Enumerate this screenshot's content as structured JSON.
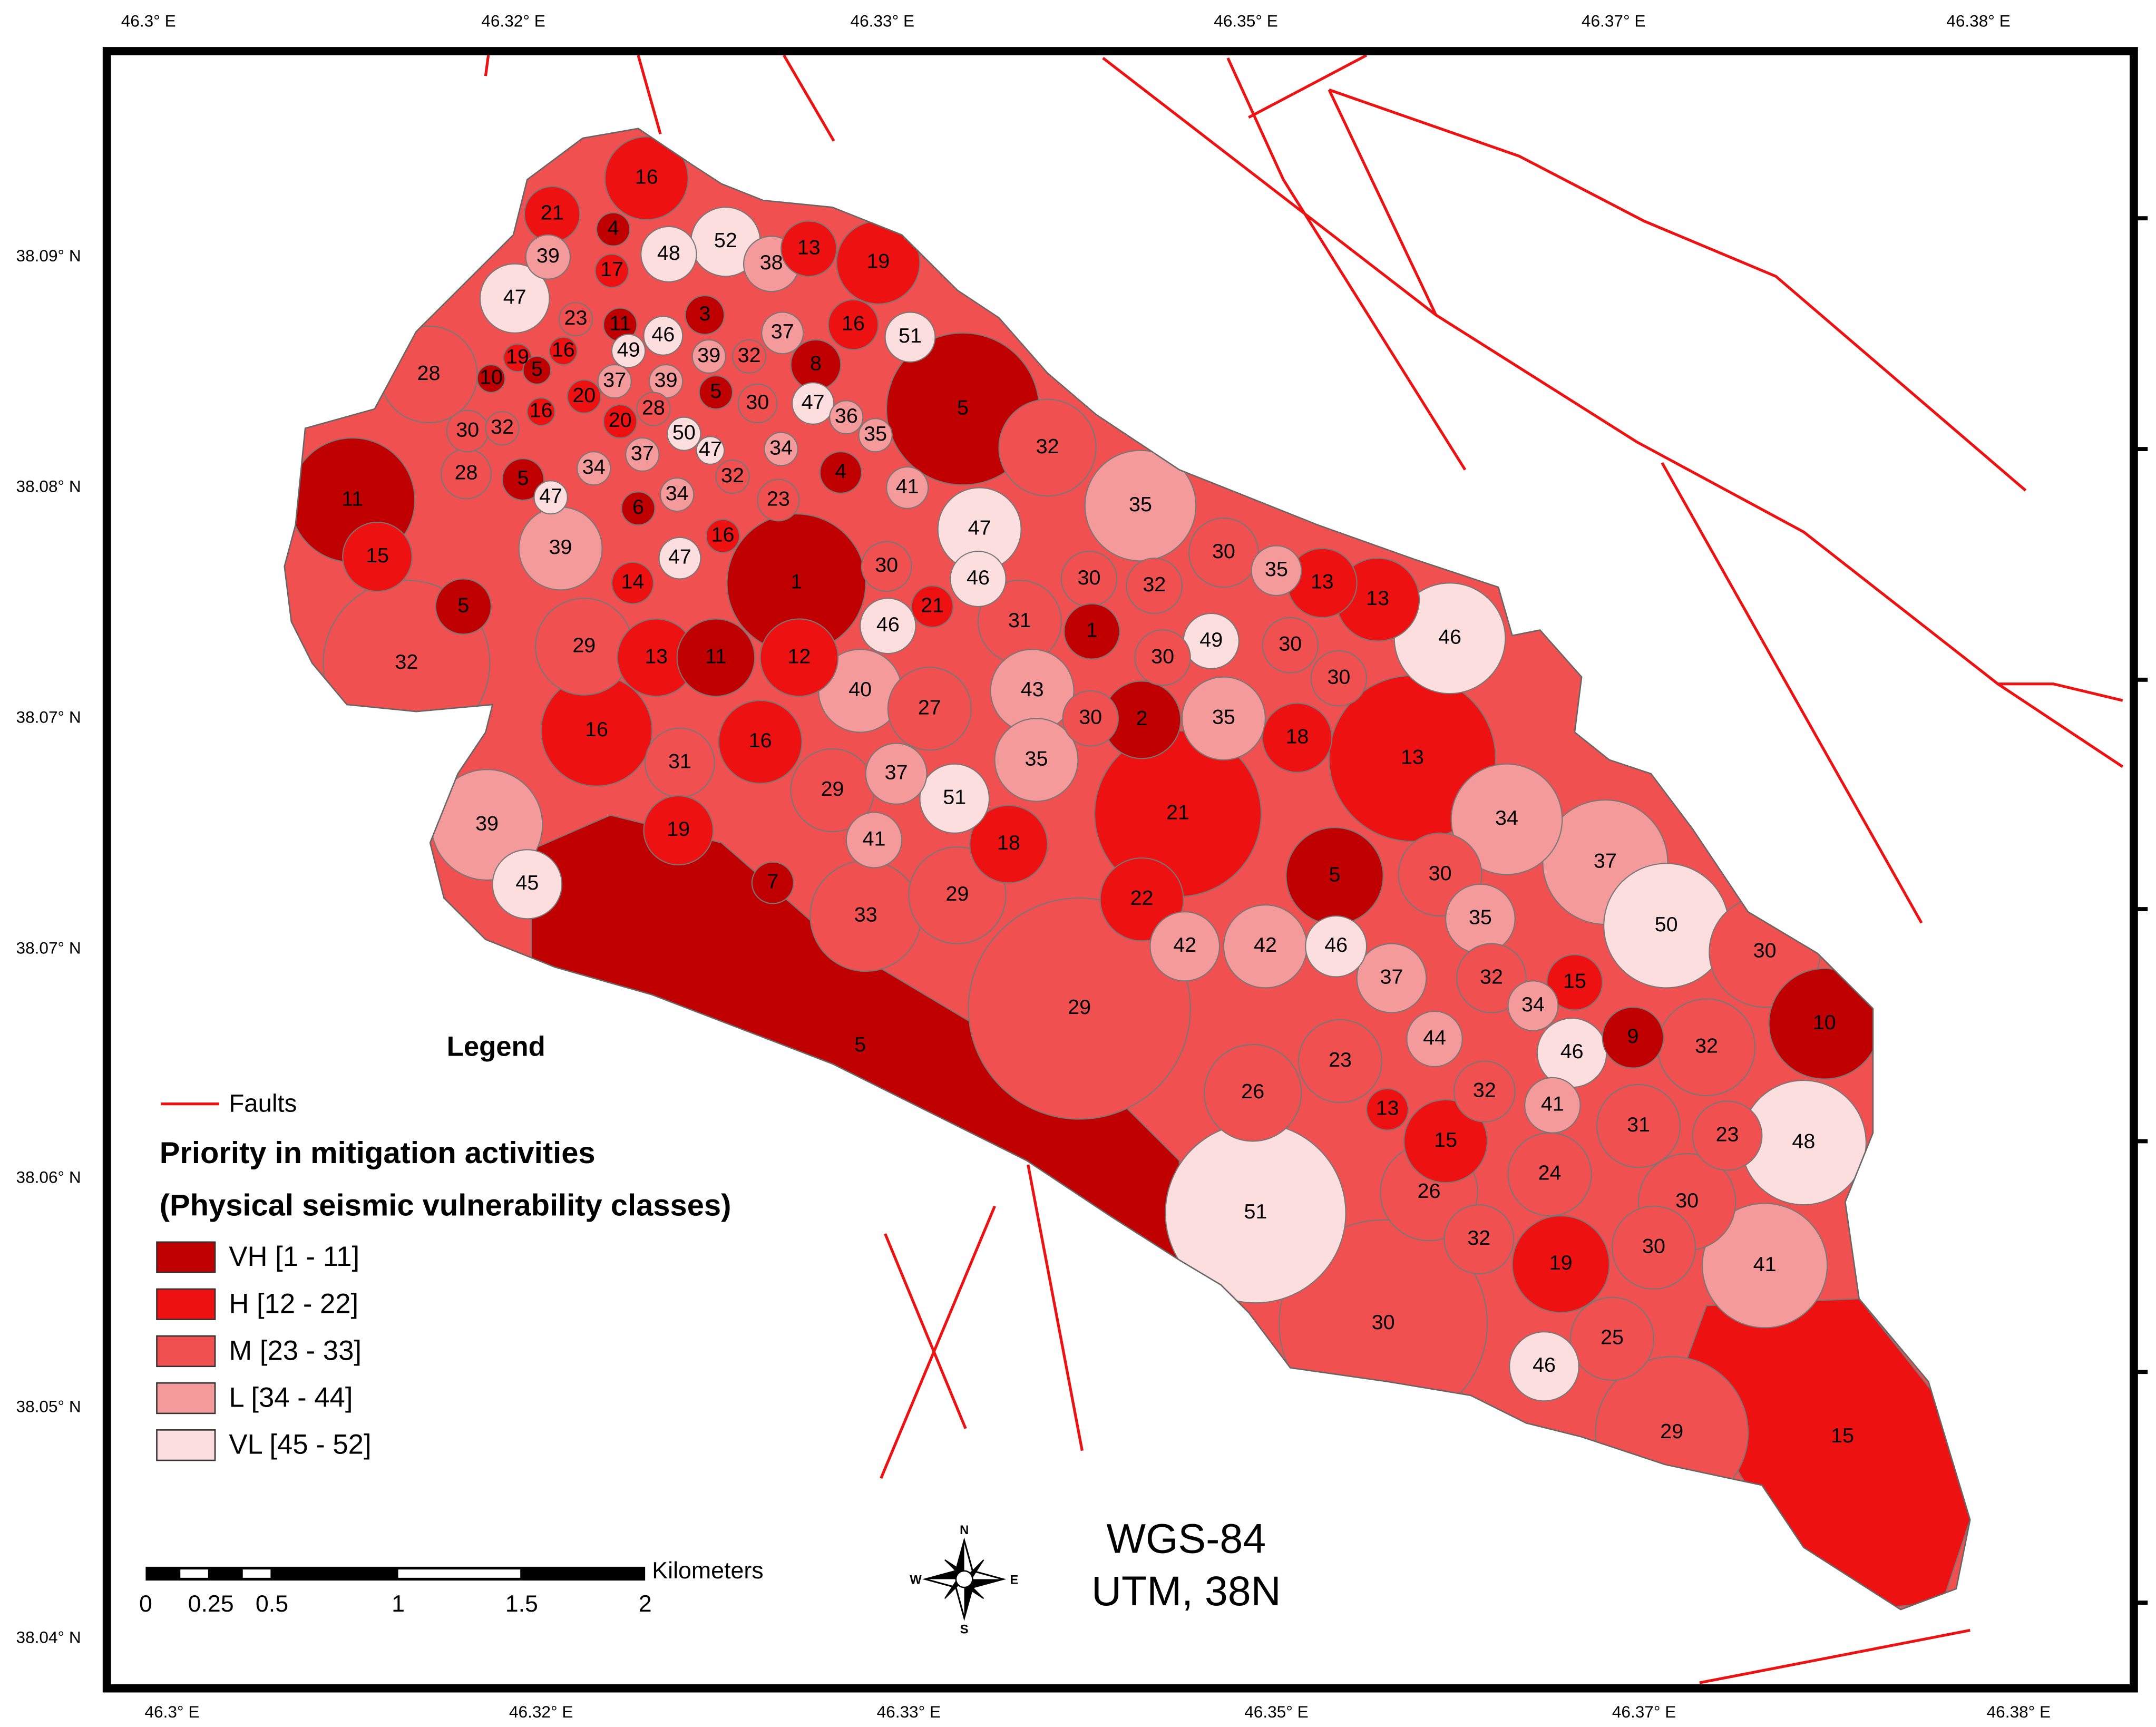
{
  "coordinates": {
    "top": [
      "46.3° E",
      "46.32° E",
      "46.33° E",
      "46.35° E",
      "46.37° E",
      "46.38° E"
    ],
    "bottom": [
      "46.3° E",
      "46.32° E",
      "46.33° E",
      "46.35° E",
      "46.37° E",
      "46.38° E"
    ],
    "left": [
      "38.09° N",
      "38.08° N",
      "38.07° N",
      "38.07° N",
      "38.06° N",
      "38.05° N",
      "38.04° N"
    ]
  },
  "legend": {
    "title": "Legend",
    "fault": "Faults",
    "heading": [
      "Priority in mitigation activities",
      "(Physical seismic vulnerability classes)"
    ],
    "classes": [
      {
        "label": "VH [1 - 11]",
        "color": "#c00000"
      },
      {
        "label": "H [12 - 22]",
        "color": "#ee1111"
      },
      {
        "label": "M [23 - 33]",
        "color": "#f05050"
      },
      {
        "label": "L [34 - 44]",
        "color": "#f59a9a"
      },
      {
        "label": "VL [45 - 52]",
        "color": "#fddede"
      }
    ]
  },
  "scale": {
    "labels": [
      "0",
      "0.25",
      "0.5",
      "1",
      "1.5",
      "2"
    ],
    "unit": "Kilometers"
  },
  "datum": [
    "WGS-84",
    "UTM, 38N"
  ],
  "compass": [
    "N",
    "E",
    "S",
    "W"
  ],
  "zones": {
    "labels": [
      16,
      21,
      4,
      39,
      17,
      48,
      52,
      38,
      13,
      19,
      47,
      23,
      11,
      3,
      46,
      37,
      16,
      51,
      28,
      19,
      16,
      49,
      39,
      32,
      10,
      5,
      37,
      39,
      8,
      5,
      20,
      28,
      5,
      30,
      47,
      36,
      16,
      30,
      32,
      20,
      50,
      47,
      35,
      34,
      32,
      11,
      28,
      5,
      47,
      34,
      37,
      32,
      4,
      41,
      34,
      6,
      23,
      35,
      47,
      15,
      39,
      16,
      47,
      1,
      30,
      46,
      30,
      32,
      30,
      35,
      13,
      13,
      14,
      21,
      5,
      32,
      29,
      13,
      11,
      12,
      46,
      31,
      1,
      49,
      30,
      30,
      46,
      30,
      16,
      40,
      27,
      43,
      30,
      2,
      35,
      18,
      13,
      31,
      16,
      29,
      37,
      51,
      35,
      21,
      39,
      45,
      19,
      41,
      18,
      29,
      34,
      37,
      50,
      5,
      30,
      22,
      7,
      33,
      42,
      42,
      46,
      35,
      30,
      37,
      32,
      15,
      34,
      29,
      10,
      9,
      44,
      23,
      46,
      32,
      5,
      26,
      13,
      32,
      41,
      15,
      31,
      23,
      48,
      24,
      26,
      30,
      51,
      32,
      30,
      19,
      41,
      30,
      25,
      46,
      29,
      15
    ],
    "colors": [
      "#ee1111",
      "#ee1111",
      "#c00000",
      "#f59a9a",
      "#ee1111",
      "#fddede",
      "#fddede",
      "#f59a9a",
      "#ee1111",
      "#ee1111",
      "#fddede",
      "#f05050",
      "#c00000",
      "#c00000",
      "#fddede",
      "#f59a9a",
      "#ee1111",
      "#fddede",
      "#f05050",
      "#ee1111",
      "#ee1111",
      "#fddede",
      "#f59a9a",
      "#f05050",
      "#c00000",
      "#c00000",
      "#f59a9a",
      "#f59a9a",
      "#c00000",
      "#c00000",
      "#ee1111",
      "#f05050",
      "#c00000",
      "#f05050",
      "#fddede",
      "#f59a9a",
      "#ee1111",
      "#f05050",
      "#f05050",
      "#ee1111",
      "#fddede",
      "#fddede",
      "#f59a9a",
      "#f59a9a",
      "#f05050",
      "#c00000",
      "#f05050",
      "#c00000",
      "#fddede",
      "#f59a9a",
      "#f59a9a",
      "#f05050",
      "#c00000",
      "#f59a9a",
      "#f59a9a",
      "#c00000",
      "#f05050",
      "#f59a9a",
      "#fddede",
      "#ee1111",
      "#f59a9a",
      "#ee1111",
      "#fddede",
      "#c00000",
      "#f05050",
      "#fddede",
      "#f05050",
      "#f05050",
      "#f05050",
      "#f59a9a",
      "#ee1111",
      "#ee1111",
      "#ee1111",
      "#ee1111",
      "#c00000",
      "#f05050",
      "#f05050",
      "#ee1111",
      "#c00000",
      "#ee1111",
      "#fddede",
      "#f05050",
      "#c00000",
      "#fddede",
      "#f05050",
      "#f05050",
      "#fddede",
      "#f05050",
      "#ee1111",
      "#f59a9a",
      "#f05050",
      "#f59a9a",
      "#f05050",
      "#c00000",
      "#f59a9a",
      "#ee1111",
      "#ee1111",
      "#f05050",
      "#ee1111",
      "#f05050",
      "#f59a9a",
      "#fddede",
      "#f59a9a",
      "#ee1111",
      "#f59a9a",
      "#fddede",
      "#ee1111",
      "#f59a9a",
      "#ee1111",
      "#f05050",
      "#f59a9a",
      "#f59a9a",
      "#fddede",
      "#c00000",
      "#f05050",
      "#ee1111",
      "#c00000",
      "#f05050",
      "#f59a9a",
      "#f59a9a",
      "#fddede",
      "#f59a9a",
      "#f05050",
      "#f59a9a",
      "#f05050",
      "#ee1111",
      "#f59a9a",
      "#f05050",
      "#c00000",
      "#c00000",
      "#f59a9a",
      "#f05050",
      "#fddede",
      "#f05050",
      "#c00000",
      "#f05050",
      "#ee1111",
      "#f05050",
      "#f59a9a",
      "#ee1111",
      "#f05050",
      "#f05050",
      "#fddede",
      "#f05050",
      "#f05050",
      "#f05050",
      "#fddede",
      "#f05050",
      "#f05050",
      "#ee1111",
      "#f59a9a",
      "#f05050",
      "#f05050",
      "#fddede",
      "#f05050",
      "#ee1111"
    ]
  }
}
